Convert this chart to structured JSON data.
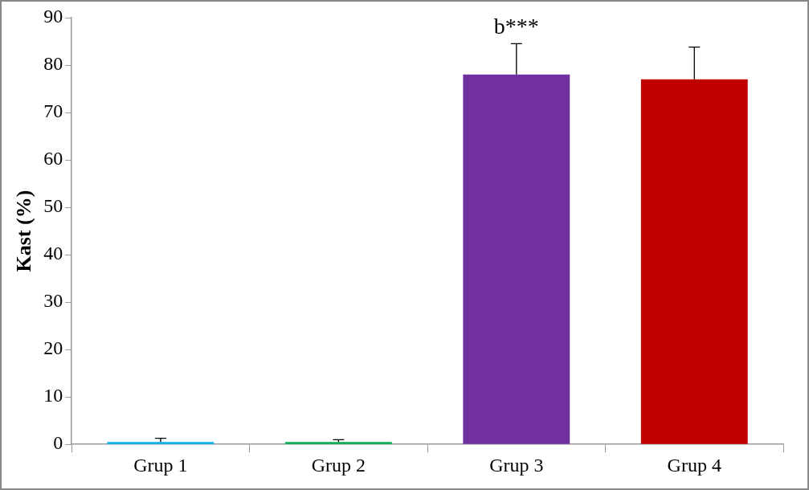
{
  "chart_data": {
    "type": "bar",
    "ylabel": "Kast (%)",
    "categories": [
      "Grup 1",
      "Grup 2",
      "Grup 3",
      "Grup 4"
    ],
    "values": [
      0.5,
      0.5,
      78,
      77
    ],
    "colors": [
      "#00b0f0",
      "#00b050",
      "#7030a0",
      "#c00000"
    ],
    "errors": [
      [
        0.5,
        1.3
      ],
      [
        0.5,
        1.0
      ],
      [
        78,
        84.5
      ],
      [
        77,
        83.8
      ]
    ],
    "ylim": [
      0,
      90
    ],
    "yticks": [
      0,
      10,
      20,
      30,
      40,
      50,
      60,
      70,
      80,
      90
    ],
    "grid": false,
    "legend": false,
    "annotations": [
      {
        "text": "b***",
        "x": "Grup 3",
        "y": 84.5
      }
    ]
  }
}
